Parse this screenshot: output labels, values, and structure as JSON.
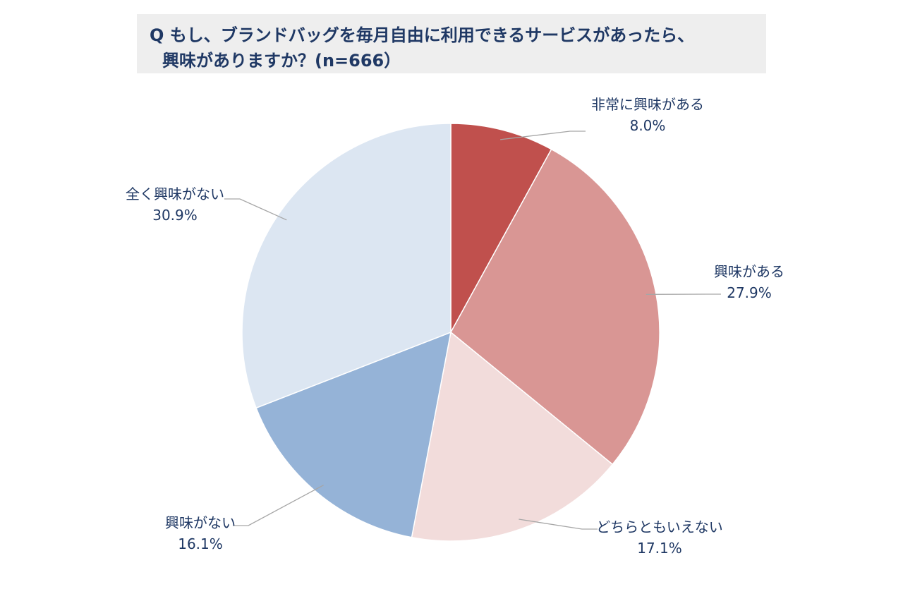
{
  "title": {
    "line1": "Q もし、ブランドバッグを毎月自由に利用できるサービスがあったら、",
    "line2": "興味がありますか？(n=666）"
  },
  "chart_data": {
    "type": "pie",
    "n": 666,
    "slices": [
      {
        "label": "非常に興味がある",
        "value": 8.0,
        "value_label": "8.0%",
        "color": "#c0504d"
      },
      {
        "label": "興味がある",
        "value": 27.9,
        "value_label": "27.9%",
        "color": "#d99694"
      },
      {
        "label": "どちらともいえない",
        "value": 17.1,
        "value_label": "17.1%",
        "color": "#f2dcdb"
      },
      {
        "label": "興味がない",
        "value": 16.1,
        "value_label": "16.1%",
        "color": "#95b3d7"
      },
      {
        "label": "全く興味がない",
        "value": 30.9,
        "value_label": "30.9%",
        "color": "#dce6f2"
      }
    ],
    "start": "12 o'clock",
    "direction": "clockwise"
  }
}
